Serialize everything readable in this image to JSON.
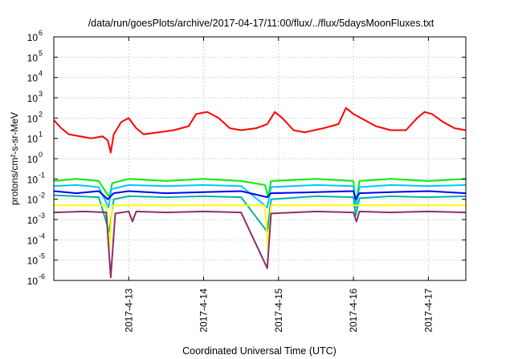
{
  "chart_data": {
    "type": "line",
    "title": "/data/run/goesPlots/archive/2017-04-17/11:00/flux/../flux/5daysMoonFluxes.txt",
    "xlabel": "Coordinated Universal Time (UTC)",
    "ylabel": "protons/cm²-s-sr-MeV",
    "y_scale": "log",
    "ylim_exponents": [
      -6,
      6
    ],
    "y_ticks": [
      {
        "mantissa": "10",
        "exp": "-6",
        "value": -6
      },
      {
        "mantissa": "10",
        "exp": "-5",
        "value": -5
      },
      {
        "mantissa": "10",
        "exp": "-4",
        "value": -4
      },
      {
        "mantissa": "10",
        "exp": "-3",
        "value": -3
      },
      {
        "mantissa": "10",
        "exp": "-2",
        "value": -2
      },
      {
        "mantissa": "10",
        "exp": "-1",
        "value": -1
      },
      {
        "mantissa": "10",
        "exp": "0",
        "value": 0
      },
      {
        "mantissa": "10",
        "exp": "1",
        "value": 1
      },
      {
        "mantissa": "10",
        "exp": "2",
        "value": 2
      },
      {
        "mantissa": "10",
        "exp": "3",
        "value": 3
      },
      {
        "mantissa": "10",
        "exp": "4",
        "value": 4
      },
      {
        "mantissa": "10",
        "exp": "5",
        "value": 5
      },
      {
        "mantissa": "10",
        "exp": "6",
        "value": 6
      }
    ],
    "x_days_range": [
      12.0,
      17.5
    ],
    "x_ticks": [
      {
        "label": "2017-4-13",
        "value": 13
      },
      {
        "label": "2017-4-14",
        "value": 14
      },
      {
        "label": "2017-4-15",
        "value": 15
      },
      {
        "label": "2017-4-16",
        "value": 16
      },
      {
        "label": "2017-4-17",
        "value": 17
      }
    ],
    "grid": true,
    "legend": "none",
    "series": [
      {
        "color": "#ff0000",
        "points": [
          [
            12.0,
            1.9
          ],
          [
            12.1,
            1.5
          ],
          [
            12.2,
            1.2
          ],
          [
            12.35,
            1.1
          ],
          [
            12.5,
            1.0
          ],
          [
            12.65,
            1.1
          ],
          [
            12.72,
            0.9
          ],
          [
            12.76,
            0.3
          ],
          [
            12.8,
            1.2
          ],
          [
            12.9,
            1.8
          ],
          [
            13.0,
            2.0
          ],
          [
            13.1,
            1.5
          ],
          [
            13.2,
            1.2
          ],
          [
            13.4,
            1.3
          ],
          [
            13.6,
            1.4
          ],
          [
            13.8,
            1.6
          ],
          [
            13.9,
            2.2
          ],
          [
            14.05,
            2.3
          ],
          [
            14.2,
            2.0
          ],
          [
            14.35,
            1.5
          ],
          [
            14.5,
            1.4
          ],
          [
            14.7,
            1.5
          ],
          [
            14.85,
            1.7
          ],
          [
            14.95,
            2.3
          ],
          [
            15.05,
            2.0
          ],
          [
            15.2,
            1.4
          ],
          [
            15.35,
            1.3
          ],
          [
            15.6,
            1.5
          ],
          [
            15.8,
            1.7
          ],
          [
            15.9,
            2.5
          ],
          [
            16.0,
            2.2
          ],
          [
            16.15,
            1.9
          ],
          [
            16.3,
            1.6
          ],
          [
            16.5,
            1.4
          ],
          [
            16.7,
            1.4
          ],
          [
            16.85,
            2.0
          ],
          [
            16.95,
            2.3
          ],
          [
            17.05,
            2.2
          ],
          [
            17.2,
            1.8
          ],
          [
            17.35,
            1.5
          ],
          [
            17.5,
            1.4
          ]
        ]
      },
      {
        "color": "#00ee00",
        "points": [
          [
            12.0,
            -1.1
          ],
          [
            12.3,
            -1.0
          ],
          [
            12.6,
            -1.1
          ],
          [
            12.74,
            -1.9
          ],
          [
            12.78,
            -1.2
          ],
          [
            13.0,
            -1.0
          ],
          [
            13.5,
            -1.1
          ],
          [
            14.0,
            -1.0
          ],
          [
            14.5,
            -1.1
          ],
          [
            14.82,
            -1.3
          ],
          [
            14.86,
            -1.9
          ],
          [
            14.9,
            -1.1
          ],
          [
            15.5,
            -1.0
          ],
          [
            16.0,
            -1.1
          ],
          [
            16.03,
            -2.2
          ],
          [
            16.08,
            -1.1
          ],
          [
            16.5,
            -1.0
          ],
          [
            17.0,
            -1.1
          ],
          [
            17.5,
            -1.0
          ]
        ]
      },
      {
        "color": "#00c8ff",
        "points": [
          [
            12.0,
            -1.35
          ],
          [
            12.3,
            -1.3
          ],
          [
            12.6,
            -1.4
          ],
          [
            12.73,
            -2.4
          ],
          [
            12.77,
            -1.5
          ],
          [
            13.0,
            -1.3
          ],
          [
            13.5,
            -1.35
          ],
          [
            14.0,
            -1.3
          ],
          [
            14.5,
            -1.35
          ],
          [
            14.85,
            -2.4
          ],
          [
            14.9,
            -1.4
          ],
          [
            15.5,
            -1.3
          ],
          [
            16.0,
            -1.35
          ],
          [
            16.03,
            -2.4
          ],
          [
            16.08,
            -1.4
          ],
          [
            16.5,
            -1.3
          ],
          [
            17.0,
            -1.35
          ],
          [
            17.5,
            -1.3
          ]
        ]
      },
      {
        "color": "#0000ff",
        "points": [
          [
            12.0,
            -1.6
          ],
          [
            12.3,
            -1.7
          ],
          [
            12.6,
            -1.6
          ],
          [
            12.72,
            -2.0
          ],
          [
            12.8,
            -1.7
          ],
          [
            13.0,
            -1.6
          ],
          [
            13.5,
            -1.7
          ],
          [
            14.0,
            -1.65
          ],
          [
            14.5,
            -1.6
          ],
          [
            14.85,
            -1.9
          ],
          [
            14.9,
            -1.7
          ],
          [
            15.5,
            -1.65
          ],
          [
            16.0,
            -1.6
          ],
          [
            16.03,
            -2.0
          ],
          [
            16.08,
            -1.7
          ],
          [
            16.5,
            -1.65
          ],
          [
            17.0,
            -1.6
          ],
          [
            17.5,
            -1.7
          ]
        ]
      },
      {
        "color": "#00b4a0",
        "points": [
          [
            12.0,
            -1.8
          ],
          [
            12.3,
            -1.85
          ],
          [
            12.6,
            -1.9
          ],
          [
            12.74,
            -3.6
          ],
          [
            12.8,
            -2.0
          ],
          [
            13.0,
            -1.85
          ],
          [
            13.5,
            -1.9
          ],
          [
            14.0,
            -1.85
          ],
          [
            14.5,
            -1.9
          ],
          [
            14.85,
            -3.6
          ],
          [
            14.9,
            -2.0
          ],
          [
            15.5,
            -1.85
          ],
          [
            16.0,
            -1.9
          ],
          [
            16.03,
            -2.8
          ],
          [
            16.08,
            -1.95
          ],
          [
            16.5,
            -1.85
          ],
          [
            17.0,
            -1.9
          ],
          [
            17.5,
            -1.85
          ]
        ]
      },
      {
        "color": "#ffff00",
        "points": [
          [
            12.0,
            -2.3
          ],
          [
            12.7,
            -2.3
          ],
          [
            12.74,
            -4.5
          ],
          [
            12.78,
            -2.3
          ],
          [
            14.82,
            -2.3
          ],
          [
            14.86,
            -4.5
          ],
          [
            14.9,
            -2.3
          ],
          [
            17.5,
            -2.3
          ]
        ]
      },
      {
        "color": "#8b2f6b",
        "points": [
          [
            12.0,
            -2.65
          ],
          [
            12.4,
            -2.6
          ],
          [
            12.7,
            -2.65
          ],
          [
            12.76,
            -5.85
          ],
          [
            12.82,
            -2.7
          ],
          [
            13.0,
            -2.6
          ],
          [
            13.05,
            -3.1
          ],
          [
            13.1,
            -2.6
          ],
          [
            13.5,
            -2.65
          ],
          [
            14.0,
            -2.6
          ],
          [
            14.5,
            -2.65
          ],
          [
            14.85,
            -5.4
          ],
          [
            14.9,
            -2.7
          ],
          [
            15.5,
            -2.6
          ],
          [
            16.0,
            -2.65
          ],
          [
            16.04,
            -3.1
          ],
          [
            16.08,
            -2.6
          ],
          [
            16.5,
            -2.65
          ],
          [
            17.0,
            -2.6
          ],
          [
            17.5,
            -2.65
          ]
        ]
      }
    ]
  }
}
